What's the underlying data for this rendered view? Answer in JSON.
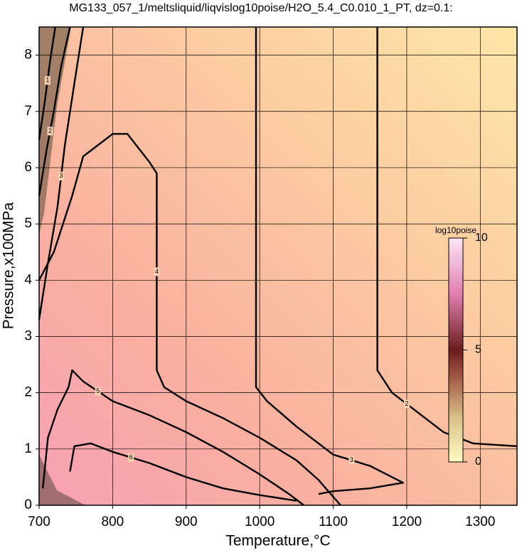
{
  "chart_data": {
    "type": "contour",
    "title": "MG133_057_1/meltsliquid/liqvislog10poise/H2O_5.4_C0.010_1_PT, dz=0.1:",
    "x_label": "Temperature,°C",
    "y_label": "Pressure,x100MPa",
    "xlim": [
      700,
      1350
    ],
    "ylim": [
      0,
      8.5
    ],
    "xticks": [
      700,
      800,
      900,
      1000,
      1100,
      1200,
      1300
    ],
    "yticks": [
      0,
      1,
      2,
      3,
      4,
      5,
      6,
      7,
      8
    ],
    "grid": true,
    "color": "#000000",
    "colorbar": {
      "label": "log10poise",
      "lim": [
        0,
        10
      ],
      "ticks": [
        0,
        5,
        10
      ]
    },
    "contours": [
      {
        "level": 1,
        "x": [
          700,
          708,
          715,
          722
        ],
        "y": [
          6.5,
          7.2,
          7.9,
          8.5
        ]
      },
      {
        "level": 2,
        "x": [
          700,
          710,
          720,
          730,
          742
        ],
        "y": [
          5.5,
          6.3,
          7.0,
          7.8,
          8.5
        ]
      },
      {
        "level": 3,
        "x": [
          700,
          712,
          725,
          735,
          748,
          760
        ],
        "y": [
          3.3,
          4.3,
          5.3,
          6.4,
          7.5,
          8.5
        ]
      },
      {
        "level": 4,
        "x": [
          700,
          720,
          745,
          760,
          800,
          820,
          850,
          860,
          860,
          870,
          900,
          950,
          1000,
          1050,
          1080,
          1110
        ],
        "y": [
          4.0,
          4.5,
          5.5,
          6.2,
          6.6,
          6.6,
          6.1,
          5.9,
          2.4,
          2.1,
          1.85,
          1.55,
          1.2,
          0.8,
          0.45,
          0
        ]
      },
      {
        "level": 5,
        "x": [
          705,
          712,
          725,
          740,
          745,
          760,
          800,
          850,
          900,
          950,
          1000,
          1040,
          1060
        ],
        "y": [
          0.3,
          1.2,
          1.7,
          2.1,
          2.4,
          2.2,
          1.85,
          1.6,
          1.3,
          0.95,
          0.55,
          0.2,
          0
        ]
      },
      {
        "level": 6,
        "x": [
          742,
          748,
          770,
          800,
          850,
          900,
          950,
          1000,
          1050
        ],
        "y": [
          0.6,
          1.05,
          1.1,
          0.95,
          0.75,
          0.5,
          0.3,
          0.18,
          0.08
        ]
      },
      {
        "level": 3,
        "x": [
          995,
          995,
          1010,
          1050,
          1100,
          1150,
          1195,
          1150,
          1100,
          1080
        ],
        "y": [
          8.5,
          2.1,
          1.85,
          1.4,
          0.9,
          0.7,
          0.4,
          0.3,
          0.25,
          0.2
        ]
      },
      {
        "level": 2,
        "x": [
          1160,
          1160,
          1180,
          1220,
          1250,
          1290,
          1350
        ],
        "y": [
          8.5,
          2.4,
          2.0,
          1.6,
          1.3,
          1.1,
          1.05
        ]
      }
    ]
  }
}
